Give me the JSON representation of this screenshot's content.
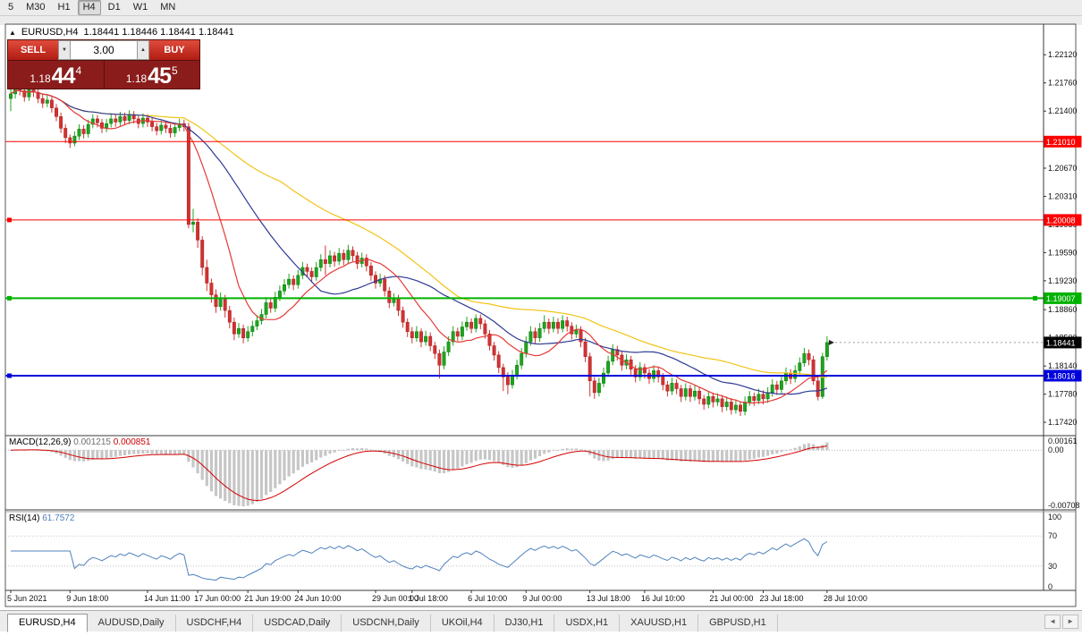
{
  "toolbar": {
    "timeframes": [
      "5",
      "M30",
      "H1",
      "H4",
      "D1",
      "W1",
      "MN"
    ],
    "active": "H4"
  },
  "window_title": {
    "symbol": "EURUSD,H4",
    "ohlc": "1.18441 1.18446 1.18441 1.18441"
  },
  "icons": {
    "panel_toggle": "▲",
    "volume_down": "▼",
    "volume_up": "▲",
    "tab_scroll_left": "◄",
    "tab_scroll_right": "►"
  },
  "trade_panel": {
    "sell_label": "SELL",
    "buy_label": "BUY",
    "volume": "3.00",
    "sell_price": {
      "prefix": "1.18",
      "big": "44",
      "sup": "4"
    },
    "buy_price": {
      "prefix": "1.18",
      "big": "45",
      "sup": "5"
    }
  },
  "tabs": {
    "items": [
      "EURUSD,H4",
      "AUDUSD,Daily",
      "USDCHF,H4",
      "USDCAD,Daily",
      "USDCNH,Daily",
      "UKOil,H4",
      "DJ30,H1",
      "USDX,H1",
      "XAUUSD,H1",
      "GBPUSD,H1"
    ],
    "active": "EURUSD,H4"
  },
  "chart_data": {
    "type": "candlestick",
    "symbol": "EURUSD",
    "timeframe": "H4",
    "colors": {
      "up": "#1ea41e",
      "up_border": "#0d7a0d",
      "down": "#d23232",
      "down_border": "#a81f1f",
      "macd_hist": "#c6c6c6",
      "macd_signal": "#d40000",
      "rsi": "#4f81bd",
      "current_label_bg": "#000000"
    },
    "price_axis": {
      "min": 1.1725,
      "max": 1.225,
      "ticks": [
        "1.22120",
        "1.21760",
        "1.21400",
        "1.20670",
        "1.20310",
        "1.19950",
        "1.19590",
        "1.19230",
        "1.18860",
        "1.18500",
        "1.18140",
        "1.17780",
        "1.17420"
      ]
    },
    "hlines": [
      {
        "price": 1.2101,
        "label": "1.21010",
        "color": "#ff0000",
        "width": 1,
        "handles": "none"
      },
      {
        "price": 1.20008,
        "label": "1.20008",
        "color": "#ff0000",
        "width": 1,
        "handles": "left"
      },
      {
        "price": 1.19007,
        "label": "1.19007",
        "color": "#00b200",
        "width": 2,
        "handles": "both"
      },
      {
        "price": 1.18016,
        "label": "1.18016",
        "color": "#0000dd",
        "width": 2,
        "handles": "left"
      }
    ],
    "current_price": {
      "value": 1.18441,
      "label": "1.18441"
    },
    "moving_averages": [
      {
        "period": 60,
        "color": "#f2c314"
      },
      {
        "period": 30,
        "color": "#2d3a94"
      },
      {
        "period": 12,
        "color": "#e53935"
      }
    ],
    "indicators": {
      "macd": {
        "label": "MACD(12,26,9)",
        "value_main": "0.001215",
        "value_signal": "0.000851",
        "axis": [
          "0.00161",
          "0.00",
          "-0.00708"
        ],
        "ymax": 0.0018,
        "ymin": -0.0074,
        "params": [
          12,
          26,
          9
        ]
      },
      "rsi": {
        "label": "RSI(14)",
        "value": "61.7572",
        "axis": [
          "100",
          "70",
          "30",
          "0"
        ],
        "period": 14,
        "levels": [
          70,
          30
        ]
      }
    },
    "date_labels": [
      {
        "t": "5 Jun 2021",
        "i": 0
      },
      {
        "t": "9 Jun 18:00",
        "i": 13
      },
      {
        "t": "14 Jun 11:00",
        "i": 30
      },
      {
        "t": "17 Jun 00:00",
        "i": 41
      },
      {
        "t": "21 Jun 19:00",
        "i": 52
      },
      {
        "t": "24 Jun 10:00",
        "i": 63
      },
      {
        "t": "29 Jun 00:00",
        "i": 80
      },
      {
        "t": "1 Jul 18:00",
        "i": 88
      },
      {
        "t": "6 Jul 10:00",
        "i": 101
      },
      {
        "t": "9 Jul 00:00",
        "i": 113
      },
      {
        "t": "13 Jul 18:00",
        "i": 127
      },
      {
        "t": "16 Jul 10:00",
        "i": 139
      },
      {
        "t": "21 Jul 00:00",
        "i": 154
      },
      {
        "t": "23 Jul 18:00",
        "i": 165
      },
      {
        "t": "28 Jul 10:00",
        "i": 179
      }
    ],
    "candles": [
      [
        1.2156,
        1.2185,
        1.214,
        1.2162
      ],
      [
        1.2162,
        1.2176,
        1.2156,
        1.217
      ],
      [
        1.217,
        1.2175,
        1.216,
        1.2166
      ],
      [
        1.2166,
        1.2171,
        1.2152,
        1.2158
      ],
      [
        1.2158,
        1.2174,
        1.2153,
        1.2168
      ],
      [
        1.2168,
        1.2173,
        1.2158,
        1.2164
      ],
      [
        1.2164,
        1.2169,
        1.215,
        1.2156
      ],
      [
        1.2156,
        1.2162,
        1.2144,
        1.215
      ],
      [
        1.215,
        1.216,
        1.2145,
        1.2154
      ],
      [
        1.2154,
        1.2158,
        1.2138,
        1.2144
      ],
      [
        1.2144,
        1.2149,
        1.2127,
        1.2133
      ],
      [
        1.2133,
        1.2138,
        1.2112,
        1.2118
      ],
      [
        1.2118,
        1.2123,
        1.2099,
        1.2106
      ],
      [
        1.2106,
        1.211,
        1.2093,
        1.2099
      ],
      [
        1.2099,
        1.2114,
        1.2095,
        1.2108
      ],
      [
        1.2108,
        1.2123,
        1.2103,
        1.2117
      ],
      [
        1.2117,
        1.2122,
        1.2105,
        1.2111
      ],
      [
        1.2111,
        1.2129,
        1.2106,
        1.2123
      ],
      [
        1.2123,
        1.2136,
        1.2118,
        1.213
      ],
      [
        1.213,
        1.2135,
        1.2119,
        1.2125
      ],
      [
        1.2125,
        1.213,
        1.2112,
        1.2118
      ],
      [
        1.2118,
        1.213,
        1.2113,
        1.2124
      ],
      [
        1.2124,
        1.2136,
        1.2119,
        1.213
      ],
      [
        1.213,
        1.2135,
        1.212,
        1.2126
      ],
      [
        1.2126,
        1.2139,
        1.2121,
        1.2133
      ],
      [
        1.2133,
        1.2138,
        1.2122,
        1.2128
      ],
      [
        1.2128,
        1.2141,
        1.2123,
        1.2135
      ],
      [
        1.2135,
        1.214,
        1.2124,
        1.213
      ],
      [
        1.213,
        1.2135,
        1.2118,
        1.2124
      ],
      [
        1.2124,
        1.2137,
        1.2119,
        1.2131
      ],
      [
        1.2131,
        1.2136,
        1.212,
        1.2126
      ],
      [
        1.2126,
        1.2131,
        1.2114,
        1.212
      ],
      [
        1.212,
        1.2125,
        1.2109,
        1.2115
      ],
      [
        1.2115,
        1.2128,
        1.211,
        1.2122
      ],
      [
        1.2122,
        1.2127,
        1.2112,
        1.2118
      ],
      [
        1.2118,
        1.2123,
        1.2106,
        1.2112
      ],
      [
        1.2112,
        1.2125,
        1.2107,
        1.2119
      ],
      [
        1.2119,
        1.213,
        1.2114,
        1.2124
      ],
      [
        1.2124,
        1.2129,
        1.2114,
        1.212
      ],
      [
        1.212,
        1.2125,
        1.199,
        1.1995
      ],
      [
        1.1995,
        1.2015,
        1.1985,
        1.1998
      ],
      [
        1.1998,
        1.2003,
        1.1965,
        1.1975
      ],
      [
        1.1975,
        1.198,
        1.193,
        1.194
      ],
      [
        1.194,
        1.195,
        1.191,
        1.192
      ],
      [
        1.192,
        1.1926,
        1.1895,
        1.1905
      ],
      [
        1.1905,
        1.1912,
        1.1882,
        1.189
      ],
      [
        1.189,
        1.1908,
        1.1885,
        1.19
      ],
      [
        1.19,
        1.1905,
        1.1876,
        1.1885
      ],
      [
        1.1885,
        1.1891,
        1.1862,
        1.187
      ],
      [
        1.187,
        1.1876,
        1.1847,
        1.1855
      ],
      [
        1.1855,
        1.1869,
        1.185,
        1.1862
      ],
      [
        1.1862,
        1.1867,
        1.1843,
        1.185
      ],
      [
        1.185,
        1.1865,
        1.1845,
        1.1858
      ],
      [
        1.1858,
        1.1872,
        1.1852,
        1.1865
      ],
      [
        1.1865,
        1.1879,
        1.186,
        1.1872
      ],
      [
        1.1872,
        1.1887,
        1.1867,
        1.188
      ],
      [
        1.188,
        1.1901,
        1.1875,
        1.1895
      ],
      [
        1.1895,
        1.19,
        1.1882,
        1.1888
      ],
      [
        1.1888,
        1.1909,
        1.1883,
        1.1902
      ],
      [
        1.1902,
        1.1917,
        1.1897,
        1.191
      ],
      [
        1.191,
        1.1925,
        1.1905,
        1.1918
      ],
      [
        1.1918,
        1.1932,
        1.1913,
        1.1925
      ],
      [
        1.1925,
        1.193,
        1.1911,
        1.1918
      ],
      [
        1.1918,
        1.1937,
        1.1913,
        1.193
      ],
      [
        1.193,
        1.1947,
        1.1925,
        1.194
      ],
      [
        1.194,
        1.1945,
        1.1928,
        1.1935
      ],
      [
        1.1935,
        1.194,
        1.1921,
        1.1928
      ],
      [
        1.1928,
        1.1947,
        1.1923,
        1.194
      ],
      [
        1.194,
        1.1957,
        1.1935,
        1.195
      ],
      [
        1.195,
        1.1968,
        1.193,
        1.1945
      ],
      [
        1.1945,
        1.1962,
        1.194,
        1.1955
      ],
      [
        1.1955,
        1.196,
        1.1941,
        1.1948
      ],
      [
        1.1948,
        1.1965,
        1.1943,
        1.1958
      ],
      [
        1.1958,
        1.1963,
        1.1943,
        1.195
      ],
      [
        1.195,
        1.1969,
        1.1945,
        1.1962
      ],
      [
        1.1962,
        1.1967,
        1.1948,
        1.1955
      ],
      [
        1.1955,
        1.196,
        1.1938,
        1.1945
      ],
      [
        1.1945,
        1.1959,
        1.194,
        1.1952
      ],
      [
        1.1952,
        1.1957,
        1.1935,
        1.1942
      ],
      [
        1.1942,
        1.1947,
        1.1923,
        1.193
      ],
      [
        1.193,
        1.1935,
        1.1913,
        1.192
      ],
      [
        1.192,
        1.1932,
        1.1915,
        1.1925
      ],
      [
        1.1925,
        1.193,
        1.1903,
        1.191
      ],
      [
        1.191,
        1.1915,
        1.1888,
        1.1895
      ],
      [
        1.1895,
        1.1907,
        1.189,
        1.19
      ],
      [
        1.19,
        1.1905,
        1.1878,
        1.1885
      ],
      [
        1.1885,
        1.189,
        1.1863,
        1.187
      ],
      [
        1.187,
        1.1875,
        1.1851,
        1.1858
      ],
      [
        1.1858,
        1.1864,
        1.1843,
        1.185
      ],
      [
        1.185,
        1.1865,
        1.1845,
        1.1858
      ],
      [
        1.1858,
        1.1862,
        1.1838,
        1.1845
      ],
      [
        1.1845,
        1.1859,
        1.184,
        1.1852
      ],
      [
        1.1852,
        1.1857,
        1.1833,
        1.184
      ],
      [
        1.184,
        1.1845,
        1.1823,
        1.183
      ],
      [
        1.183,
        1.1835,
        1.1798,
        1.1815
      ],
      [
        1.1815,
        1.1839,
        1.181,
        1.1832
      ],
      [
        1.1832,
        1.1852,
        1.1827,
        1.1845
      ],
      [
        1.1845,
        1.1865,
        1.184,
        1.1858
      ],
      [
        1.1858,
        1.1863,
        1.1846,
        1.1852
      ],
      [
        1.1852,
        1.1871,
        1.1847,
        1.1864
      ],
      [
        1.1864,
        1.1877,
        1.1859,
        1.187
      ],
      [
        1.187,
        1.1875,
        1.1856,
        1.1862
      ],
      [
        1.1862,
        1.188,
        1.1857,
        1.1875
      ],
      [
        1.1875,
        1.188,
        1.1861,
        1.1868
      ],
      [
        1.1868,
        1.1873,
        1.1849,
        1.1855
      ],
      [
        1.1855,
        1.186,
        1.1834,
        1.184
      ],
      [
        1.184,
        1.1845,
        1.1821,
        1.1828
      ],
      [
        1.1828,
        1.1833,
        1.1805,
        1.1812
      ],
      [
        1.1812,
        1.1817,
        1.1782,
        1.18
      ],
      [
        1.18,
        1.1806,
        1.1778,
        1.179
      ],
      [
        1.179,
        1.1809,
        1.1785,
        1.1802
      ],
      [
        1.1802,
        1.1822,
        1.1797,
        1.1815
      ],
      [
        1.1815,
        1.1837,
        1.181,
        1.183
      ],
      [
        1.183,
        1.1852,
        1.1825,
        1.1845
      ],
      [
        1.1845,
        1.1865,
        1.184,
        1.1858
      ],
      [
        1.1858,
        1.1863,
        1.1843,
        1.185
      ],
      [
        1.185,
        1.1869,
        1.1845,
        1.1862
      ],
      [
        1.1862,
        1.1879,
        1.1857,
        1.187
      ],
      [
        1.187,
        1.1875,
        1.1855,
        1.1862
      ],
      [
        1.1862,
        1.1877,
        1.1857,
        1.187
      ],
      [
        1.187,
        1.1875,
        1.1855,
        1.1862
      ],
      [
        1.1862,
        1.1879,
        1.1857,
        1.1872
      ],
      [
        1.1872,
        1.1877,
        1.1858,
        1.1865
      ],
      [
        1.1865,
        1.187,
        1.1848,
        1.1855
      ],
      [
        1.1855,
        1.1867,
        1.185,
        1.186
      ],
      [
        1.186,
        1.1865,
        1.1838,
        1.1845
      ],
      [
        1.1845,
        1.185,
        1.1819,
        1.1826
      ],
      [
        1.1826,
        1.1831,
        1.1775,
        1.1795
      ],
      [
        1.1795,
        1.18,
        1.1772,
        1.178
      ],
      [
        1.178,
        1.1799,
        1.1775,
        1.1792
      ],
      [
        1.1792,
        1.1812,
        1.1787,
        1.1805
      ],
      [
        1.1805,
        1.1827,
        1.18,
        1.182
      ],
      [
        1.182,
        1.1842,
        1.1815,
        1.1835
      ],
      [
        1.1835,
        1.184,
        1.1821,
        1.1828
      ],
      [
        1.1828,
        1.1833,
        1.1808,
        1.1815
      ],
      [
        1.1815,
        1.1829,
        1.181,
        1.1822
      ],
      [
        1.1822,
        1.1827,
        1.1803,
        1.181
      ],
      [
        1.181,
        1.1815,
        1.1793,
        1.18
      ],
      [
        1.18,
        1.1819,
        1.1795,
        1.1812
      ],
      [
        1.1812,
        1.1817,
        1.1798,
        1.1805
      ],
      [
        1.1805,
        1.181,
        1.1791,
        1.1798
      ],
      [
        1.1798,
        1.1815,
        1.1793,
        1.1808
      ],
      [
        1.1808,
        1.1813,
        1.1793,
        1.18
      ],
      [
        1.18,
        1.1805,
        1.1783,
        1.179
      ],
      [
        1.179,
        1.1795,
        1.1775,
        1.1782
      ],
      [
        1.1782,
        1.1799,
        1.1777,
        1.1792
      ],
      [
        1.1792,
        1.1797,
        1.1778,
        1.1785
      ],
      [
        1.1785,
        1.179,
        1.1768,
        1.1775
      ],
      [
        1.1775,
        1.1792,
        1.177,
        1.1785
      ],
      [
        1.1785,
        1.179,
        1.1768,
        1.1775
      ],
      [
        1.1775,
        1.1789,
        1.177,
        1.1782
      ],
      [
        1.1782,
        1.1787,
        1.1765,
        1.1772
      ],
      [
        1.1772,
        1.1777,
        1.1758,
        1.1765
      ],
      [
        1.1765,
        1.1782,
        1.176,
        1.1775
      ],
      [
        1.1775,
        1.178,
        1.1761,
        1.1768
      ],
      [
        1.1768,
        1.1779,
        1.1763,
        1.1772
      ],
      [
        1.1772,
        1.1777,
        1.1755,
        1.1762
      ],
      [
        1.1762,
        1.1775,
        1.1757,
        1.1768
      ],
      [
        1.1768,
        1.1773,
        1.1752,
        1.1758
      ],
      [
        1.1758,
        1.1771,
        1.1753,
        1.1764
      ],
      [
        1.1764,
        1.1769,
        1.175,
        1.1756
      ],
      [
        1.1756,
        1.1775,
        1.1751,
        1.1768
      ],
      [
        1.1768,
        1.1782,
        1.1763,
        1.1775
      ],
      [
        1.1775,
        1.178,
        1.1763,
        1.177
      ],
      [
        1.177,
        1.1785,
        1.1765,
        1.1778
      ],
      [
        1.1778,
        1.1783,
        1.1765,
        1.1772
      ],
      [
        1.1772,
        1.1787,
        1.1767,
        1.178
      ],
      [
        1.178,
        1.1797,
        1.1775,
        1.179
      ],
      [
        1.179,
        1.1795,
        1.1777,
        1.1784
      ],
      [
        1.1784,
        1.1802,
        1.1779,
        1.1795
      ],
      [
        1.1795,
        1.1812,
        1.179,
        1.1805
      ],
      [
        1.1805,
        1.181,
        1.1791,
        1.1798
      ],
      [
        1.1798,
        1.1815,
        1.1793,
        1.1808
      ],
      [
        1.1808,
        1.1825,
        1.1803,
        1.1818
      ],
      [
        1.1818,
        1.1837,
        1.1813,
        1.183
      ],
      [
        1.183,
        1.1835,
        1.1815,
        1.1822
      ],
      [
        1.1822,
        1.1827,
        1.179,
        1.1795
      ],
      [
        1.1795,
        1.18,
        1.177,
        1.1775
      ],
      [
        1.1775,
        1.1831,
        1.1772,
        1.1826
      ],
      [
        1.1826,
        1.1852,
        1.1821,
        1.18441
      ]
    ]
  }
}
